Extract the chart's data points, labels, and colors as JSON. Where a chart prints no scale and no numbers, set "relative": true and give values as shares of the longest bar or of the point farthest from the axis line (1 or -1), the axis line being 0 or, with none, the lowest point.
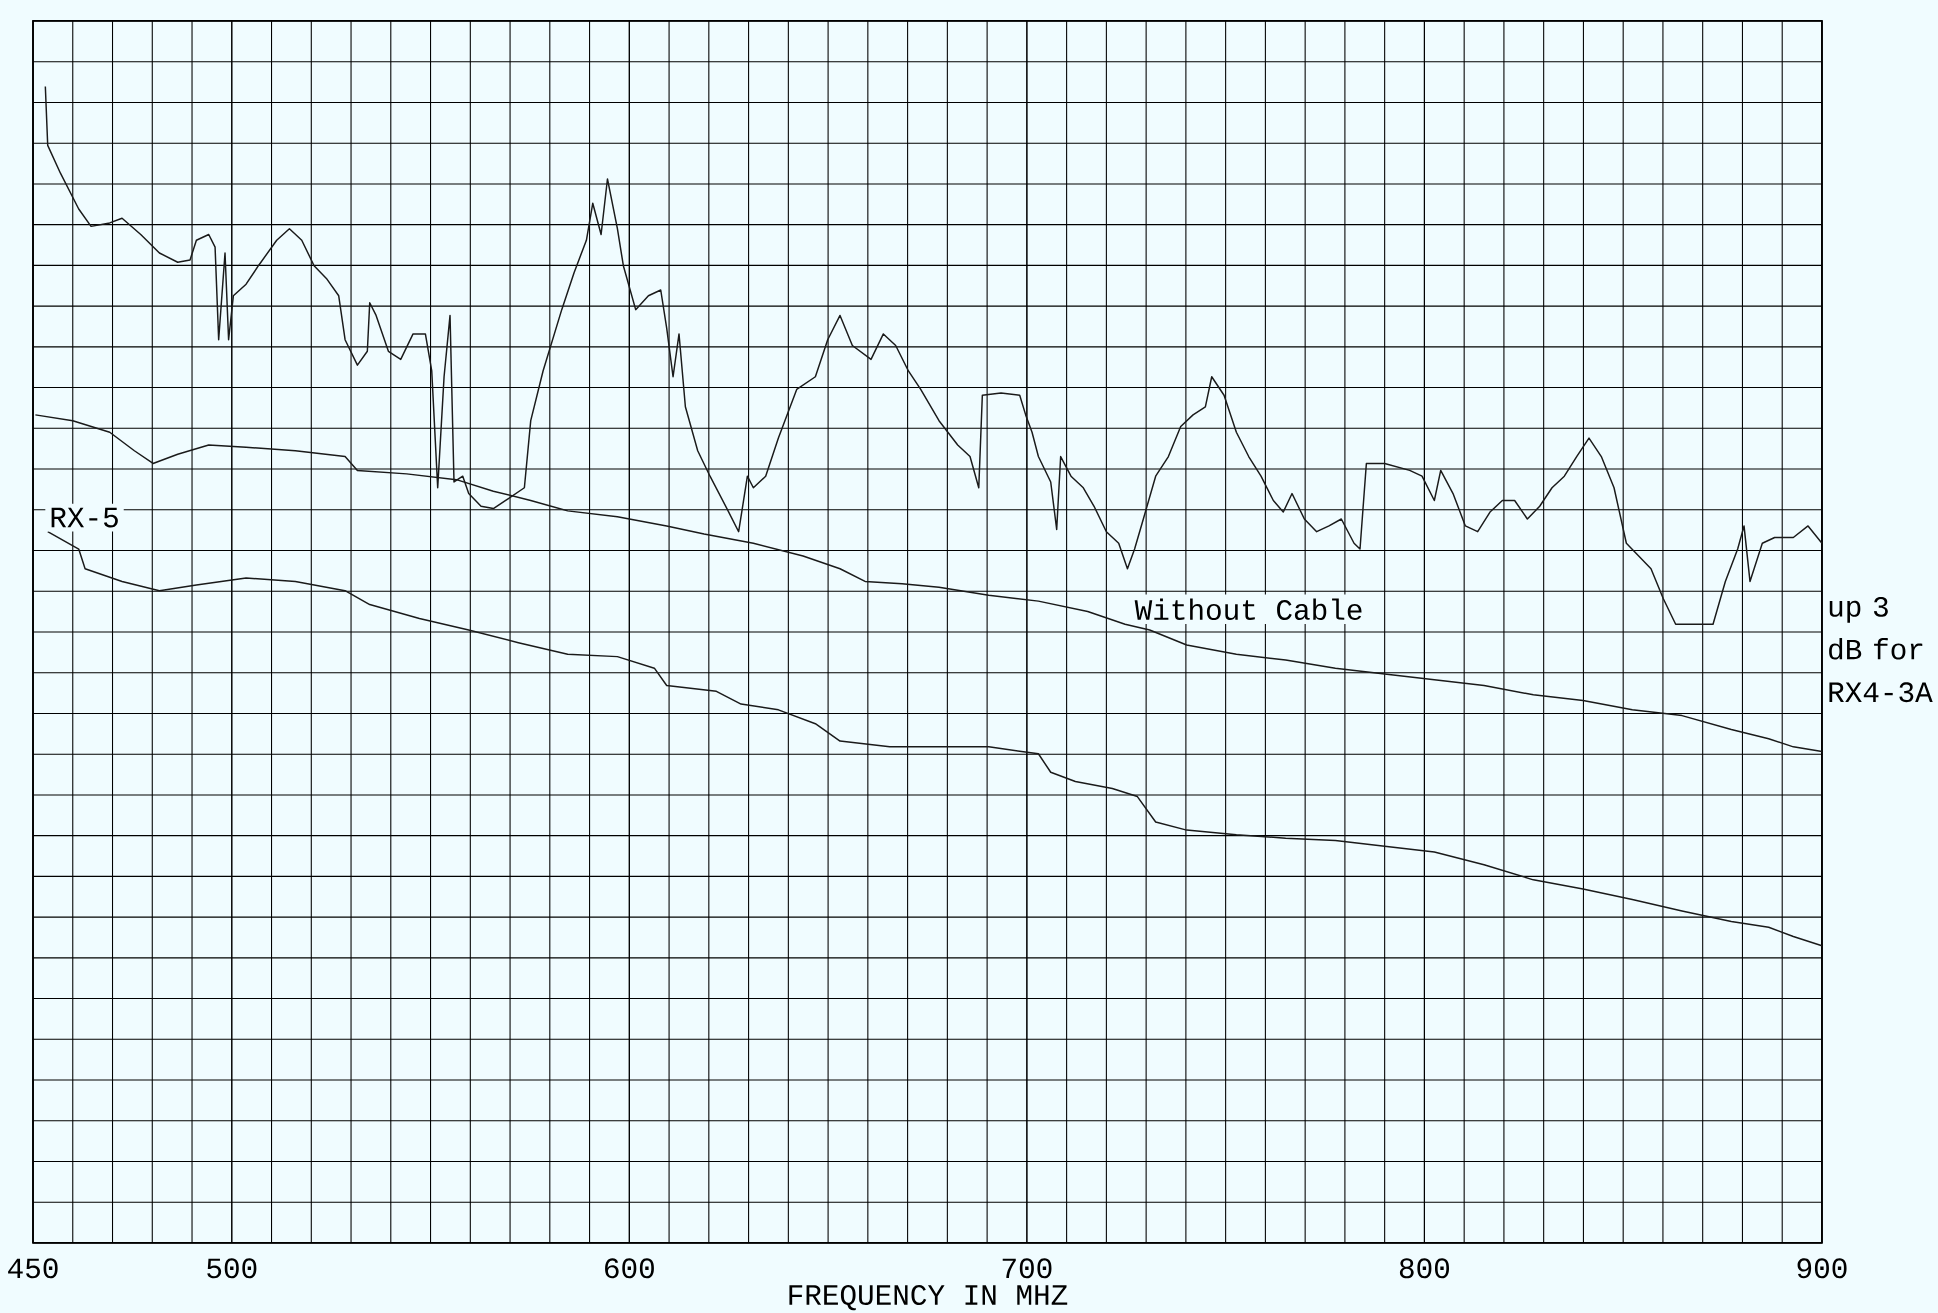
{
  "chart_data": {
    "type": "line",
    "relative": true,
    "xlabel": "FREQUENCY IN MHZ",
    "xlim": [
      450,
      900
    ],
    "xticks": [
      450,
      500,
      600,
      700,
      800,
      900
    ],
    "grid": true,
    "annotations": [
      "up 3 dB for RX4-3A"
    ],
    "series": [
      {
        "color": "#1a1a1a",
        "x": [
          453.1,
          453.7,
          456.9,
          461.5,
          464.6,
          469.3,
          472.4,
          477.1,
          481.8,
          486.4,
          489.5,
          491.1,
          494.2,
          495.8,
          496.7,
          498.3,
          499.2,
          500.4,
          503.6,
          506.7,
          511.3,
          514.5,
          517.6,
          520.7,
          523.8,
          526.9,
          528.5,
          531.6,
          534.1,
          534.7,
          536.3,
          539.4,
          542.5,
          545.6,
          548.7,
          550.3,
          551.8,
          553.4,
          554.9,
          555.9,
          558.1,
          559.6,
          562.7,
          565.8,
          568.9,
          573.6,
          575.2,
          578.3,
          583.0,
          586.1,
          589.2,
          590.8,
          592.9,
          594.5,
          597.0,
          598.5,
          601.6,
          604.8,
          607.9,
          609.4,
          611.0,
          612.5,
          614.1,
          617.2,
          620.3,
          625.0,
          627.5,
          629.7,
          631.2,
          634.3,
          637.5,
          642.1,
          646.8,
          649.9,
          653.0,
          656.1,
          660.8,
          663.9,
          667.0,
          670.2,
          673.3,
          677.9,
          682.6,
          685.7,
          687.9,
          688.8,
          693.5,
          698.2,
          699.7,
          701.3,
          702.9,
          706.0,
          707.5,
          708.5,
          711.1,
          714.2,
          716.9,
          720.0,
          723.1,
          725.3,
          727.1,
          729.3,
          732.4,
          735.6,
          738.7,
          741.8,
          744.9,
          746.5,
          749.6,
          752.7,
          755.8,
          758.9,
          762.0,
          764.5,
          766.7,
          769.8,
          772.9,
          776.0,
          779.1,
          782.3,
          783.8,
          785.4,
          790.0,
          796.3,
          799.4,
          802.5,
          804.1,
          807.2,
          810.3,
          813.4,
          816.5,
          819.6,
          822.7,
          825.9,
          829.0,
          832.1,
          835.2,
          838.3,
          841.4,
          844.5,
          847.7,
          850.8,
          853.9,
          857.0,
          860.1,
          863.2,
          867.9,
          872.6,
          875.7,
          878.8,
          880.4,
          881.9,
          885.0,
          888.1,
          892.8,
          896.5,
          900.0
        ],
        "values": [
          1.0,
          0.949,
          0.925,
          0.894,
          0.879,
          0.882,
          0.886,
          0.872,
          0.856,
          0.848,
          0.85,
          0.867,
          0.872,
          0.861,
          0.781,
          0.856,
          0.781,
          0.819,
          0.829,
          0.845,
          0.867,
          0.877,
          0.867,
          0.845,
          0.834,
          0.819,
          0.781,
          0.759,
          0.771,
          0.813,
          0.802,
          0.771,
          0.764,
          0.786,
          0.786,
          0.754,
          0.653,
          0.749,
          0.802,
          0.658,
          0.663,
          0.648,
          0.637,
          0.635,
          0.642,
          0.653,
          0.711,
          0.754,
          0.807,
          0.839,
          0.867,
          0.899,
          0.872,
          0.92,
          0.877,
          0.845,
          0.807,
          0.819,
          0.824,
          0.791,
          0.749,
          0.786,
          0.723,
          0.685,
          0.663,
          0.632,
          0.615,
          0.663,
          0.653,
          0.663,
          0.696,
          0.738,
          0.749,
          0.781,
          0.802,
          0.776,
          0.764,
          0.786,
          0.776,
          0.754,
          0.738,
          0.711,
          0.69,
          0.68,
          0.653,
          0.733,
          0.735,
          0.733,
          0.716,
          0.701,
          0.68,
          0.658,
          0.617,
          0.68,
          0.663,
          0.653,
          0.637,
          0.615,
          0.605,
          0.583,
          0.6,
          0.626,
          0.663,
          0.68,
          0.706,
          0.716,
          0.723,
          0.749,
          0.733,
          0.701,
          0.68,
          0.663,
          0.642,
          0.632,
          0.648,
          0.626,
          0.615,
          0.62,
          0.626,
          0.605,
          0.6,
          0.674,
          0.674,
          0.668,
          0.663,
          0.642,
          0.668,
          0.648,
          0.62,
          0.615,
          0.632,
          0.642,
          0.642,
          0.626,
          0.637,
          0.653,
          0.663,
          0.68,
          0.696,
          0.68,
          0.653,
          0.605,
          0.594,
          0.583,
          0.557,
          0.535,
          0.535,
          0.535,
          0.572,
          0.6,
          0.62,
          0.572,
          0.605,
          0.61,
          0.61,
          0.62,
          0.605
        ]
      },
      {
        "name": "Without Cable",
        "color": "#1a1a1a",
        "x": [
          450.6,
          460.0,
          469.3,
          475.5,
          480.2,
          486.4,
          494.2,
          503.6,
          516.0,
          528.5,
          531.6,
          544.0,
          556.5,
          565.8,
          575.2,
          584.5,
          597.0,
          609.4,
          618.8,
          631.2,
          643.7,
          653.0,
          659.3,
          668.6,
          677.9,
          690.4,
          702.9,
          715.3,
          724.7,
          730.9,
          740.2,
          752.7,
          765.1,
          777.6,
          790.0,
          802.5,
          815.0,
          827.4,
          839.9,
          852.3,
          864.8,
          877.2,
          886.6,
          892.8,
          900.0
        ],
        "values": [
          0.716,
          0.711,
          0.701,
          0.685,
          0.674,
          0.682,
          0.69,
          0.688,
          0.685,
          0.68,
          0.668,
          0.665,
          0.66,
          0.65,
          0.642,
          0.633,
          0.628,
          0.62,
          0.613,
          0.605,
          0.594,
          0.583,
          0.572,
          0.57,
          0.567,
          0.56,
          0.555,
          0.546,
          0.535,
          0.53,
          0.517,
          0.509,
          0.504,
          0.497,
          0.492,
          0.487,
          0.482,
          0.474,
          0.469,
          0.461,
          0.456,
          0.444,
          0.436,
          0.429,
          0.425
        ]
      },
      {
        "name": "RX-5",
        "color": "#1a1a1a",
        "x": [
          453.7,
          461.5,
          463.1,
          472.4,
          481.8,
          491.1,
          503.6,
          516.0,
          528.5,
          534.7,
          547.2,
          559.6,
          572.1,
          584.5,
          597.0,
          606.3,
          609.4,
          621.9,
          628.1,
          637.5,
          646.8,
          653.0,
          665.5,
          677.9,
          690.4,
          702.9,
          706.0,
          712.2,
          721.5,
          727.8,
          732.4,
          740.2,
          752.7,
          765.1,
          777.6,
          790.0,
          802.5,
          815.0,
          827.4,
          839.9,
          852.3,
          864.8,
          877.2,
          886.6,
          892.8,
          900.0
        ],
        "values": [
          0.615,
          0.6,
          0.583,
          0.572,
          0.564,
          0.569,
          0.575,
          0.572,
          0.564,
          0.552,
          0.54,
          0.53,
          0.519,
          0.509,
          0.507,
          0.497,
          0.482,
          0.477,
          0.466,
          0.461,
          0.449,
          0.434,
          0.429,
          0.429,
          0.429,
          0.423,
          0.407,
          0.399,
          0.393,
          0.386,
          0.364,
          0.357,
          0.353,
          0.35,
          0.348,
          0.343,
          0.338,
          0.327,
          0.314,
          0.306,
          0.297,
          0.287,
          0.278,
          0.273,
          0.265,
          0.257
        ]
      }
    ]
  }
}
